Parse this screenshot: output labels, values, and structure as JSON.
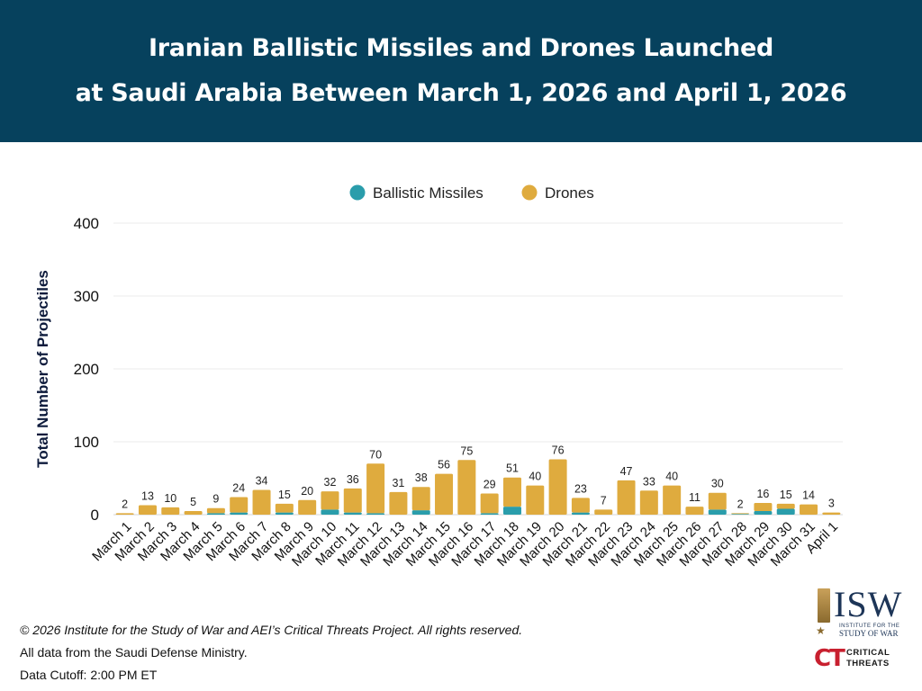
{
  "header": {
    "title_line1": "Iranian Ballistic Missiles and Drones Launched",
    "title_line2": "at Saudi Arabia Between March 1, 2026 and April 1, 2026"
  },
  "chart_data": {
    "type": "bar",
    "stacked": true,
    "title": "Iranian Ballistic Missiles and Drones Launched at Saudi Arabia Between March 1, 2026 and April 1, 2026",
    "ylabel": "Total Number of Projectiles",
    "xlabel": "",
    "ylim": [
      0,
      400
    ],
    "yticks": [
      0,
      100,
      200,
      300,
      400
    ],
    "grid": true,
    "legend_position": "top-center",
    "categories": [
      "March 1",
      "March 2",
      "March 3",
      "March 4",
      "March 5",
      "March 6",
      "March 7",
      "March 8",
      "March 9",
      "March 10",
      "March 11",
      "March 12",
      "March 13",
      "March 14",
      "March 15",
      "March 16",
      "March 17",
      "March 18",
      "March 19",
      "March 20",
      "March 21",
      "March 22",
      "March 23",
      "March 24",
      "March 25",
      "March 26",
      "March 27",
      "March 28",
      "March 29",
      "March 30",
      "March 31",
      "April 1"
    ],
    "series": [
      {
        "name": "Ballistic Missiles",
        "color": "#2a9dab",
        "values": [
          0,
          0,
          0,
          0,
          2,
          3,
          0,
          3,
          0,
          7,
          3,
          2,
          0,
          6,
          0,
          0,
          2,
          11,
          0,
          0,
          3,
          0,
          0,
          0,
          0,
          0,
          7,
          1,
          5,
          8,
          0,
          0
        ]
      },
      {
        "name": "Drones",
        "color": "#dfab3e",
        "values": [
          2,
          13,
          10,
          5,
          7,
          21,
          34,
          12,
          20,
          25,
          33,
          68,
          31,
          32,
          56,
          75,
          27,
          40,
          40,
          76,
          20,
          7,
          47,
          33,
          40,
          11,
          23,
          1,
          11,
          7,
          14,
          3
        ]
      }
    ],
    "totals": [
      2,
      13,
      10,
      5,
      9,
      24,
      34,
      15,
      20,
      32,
      36,
      70,
      31,
      38,
      56,
      75,
      29,
      51,
      40,
      76,
      23,
      7,
      47,
      33,
      40,
      11,
      30,
      2,
      16,
      15,
      14,
      3
    ]
  },
  "footer": {
    "copyright": "© 2026 Institute for the Study of War and AEI’s Critical Threats Project. All rights reserved.",
    "source": "All data from the Saudi Defense Ministry.",
    "cutoff": "Data Cutoff: 2:00 PM ET"
  },
  "logos": {
    "isw_letters": "ISW",
    "isw_sub1": "INSTITUTE FOR THE",
    "isw_sub2": "STUDY OF WAR",
    "ct_mark": "CT",
    "ct_word1": "CRITICAL",
    "ct_word2": "THREATS"
  }
}
